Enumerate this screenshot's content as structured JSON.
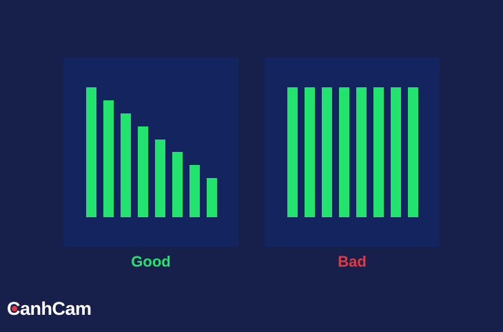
{
  "panels": [
    {
      "label": "Good",
      "label_color": "#22e36d",
      "bar_heights": [
        1.0,
        0.9,
        0.8,
        0.7,
        0.6,
        0.5,
        0.4,
        0.3
      ]
    },
    {
      "label": "Bad",
      "label_color": "#e23a44",
      "bar_heights": [
        1.0,
        1.0,
        1.0,
        1.0,
        1.0,
        1.0,
        1.0,
        1.0
      ]
    }
  ],
  "colors": {
    "background": "#17204a",
    "panel": "#14245e",
    "bar": "#22e36d",
    "logo_dot": "#e8343f"
  },
  "logo": {
    "text": "CanhCam"
  }
}
